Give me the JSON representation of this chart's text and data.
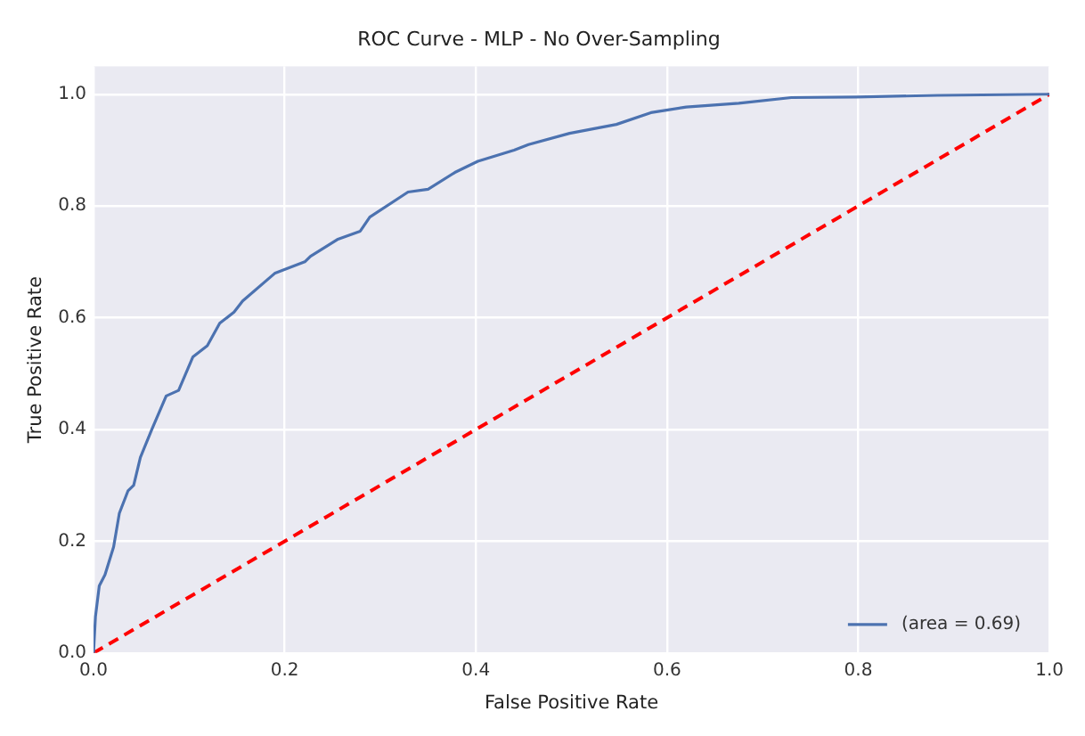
{
  "chart_data": {
    "type": "line",
    "title": "ROC Curve - MLP - No Over-Sampling",
    "xlabel": "False Positive Rate",
    "ylabel": "True Positive Rate",
    "xlim": [
      0,
      1
    ],
    "ylim": [
      0,
      1.05
    ],
    "xticks": [
      {
        "value": 0,
        "label": "0.0"
      },
      0.2,
      0.4,
      0.6,
      0.8,
      {
        "value": 1,
        "label": "1.0"
      }
    ],
    "yticks": [
      {
        "value": 0,
        "label": "0.0"
      },
      0.2,
      0.4,
      0.6,
      0.8,
      {
        "value": 1,
        "label": "1.0"
      }
    ],
    "grid": true,
    "legend": "bottom right",
    "marker": "none",
    "series": [
      {
        "name": "(area = 0.69)",
        "color": "#4c72b0",
        "line_style": "solid",
        "x": [
          0,
          0.002,
          0.006,
          0.012,
          0.021,
          0.027,
          0.036,
          0.042,
          0.049,
          0.061,
          0.076,
          0.089,
          0.104,
          0.119,
          0.132,
          0.147,
          0.156,
          0.19,
          0.221,
          0.227,
          0.255,
          0.279,
          0.289,
          0.329,
          0.35,
          0.378,
          0.402,
          0.44,
          0.455,
          0.498,
          0.547,
          0.583,
          0.62,
          0.675,
          0.73,
          0.798,
          0.883,
          1
        ],
        "values": [
          0,
          0.065,
          0.12,
          0.14,
          0.19,
          0.25,
          0.29,
          0.3,
          0.35,
          0.4,
          0.46,
          0.47,
          0.53,
          0.55,
          0.59,
          0.61,
          0.63,
          0.68,
          0.7,
          0.71,
          0.74,
          0.755,
          0.78,
          0.825,
          0.83,
          0.86,
          0.88,
          0.9,
          0.91,
          0.93,
          0.946,
          0.967,
          0.977,
          0.984,
          0.994,
          0.995,
          0.998,
          1
        ]
      },
      {
        "type": "line",
        "color": "#ff0000",
        "line_style": "dashed",
        "x": [
          0,
          1
        ],
        "values": [
          0,
          1
        ]
      }
    ]
  }
}
